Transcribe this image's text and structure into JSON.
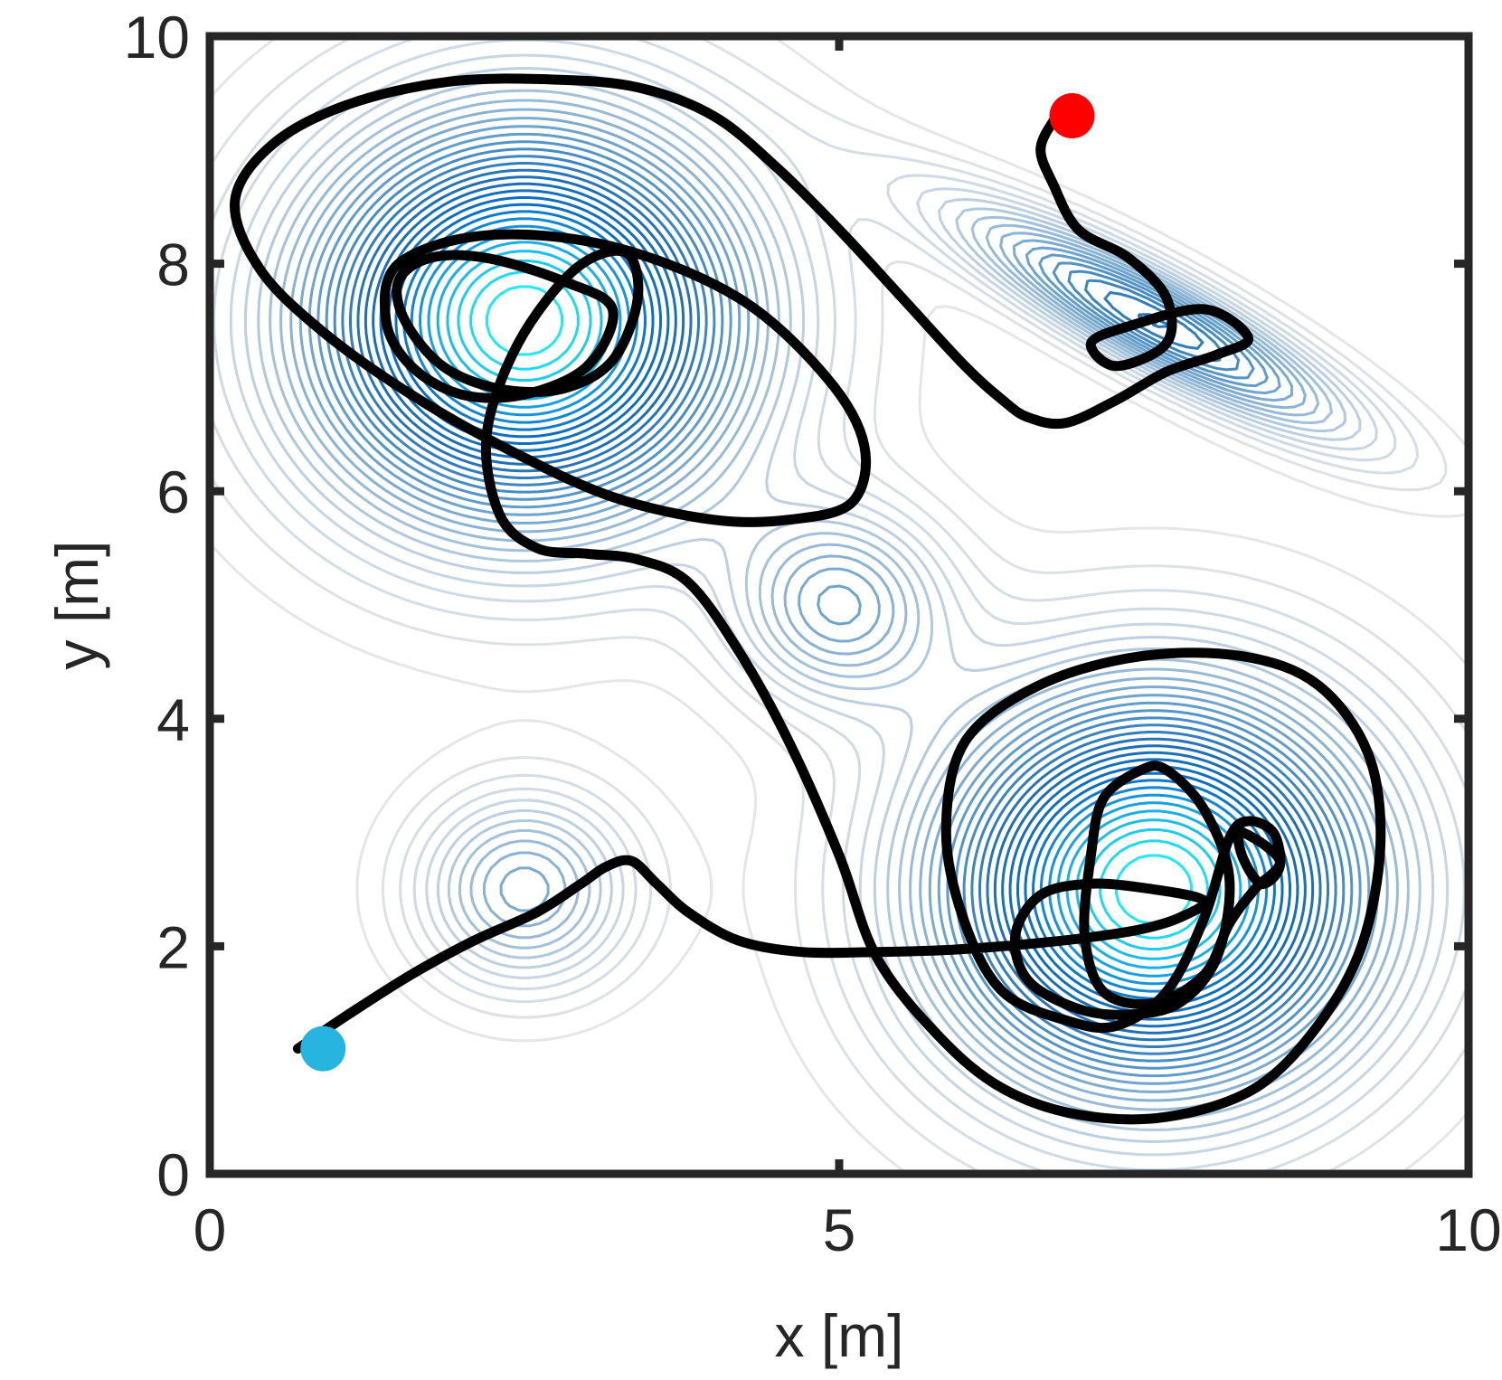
{
  "chart_data": {
    "type": "contour",
    "xlabel": "x [m]",
    "ylabel": "y [m]",
    "xlim": [
      0,
      10
    ],
    "ylim": [
      0,
      10
    ],
    "xticks": [
      0,
      5,
      10
    ],
    "yticks": [
      0,
      2,
      4,
      6,
      8,
      10
    ],
    "xtick_labels": [
      "0",
      "5",
      "10"
    ],
    "ytick_labels": [
      "0",
      "2",
      "4",
      "6",
      "8",
      "10"
    ],
    "grid": false,
    "colormap": [
      "#e6e6e6",
      "#c3d4e3",
      "#8bb4d4",
      "#4f93c6",
      "#1f6fb4",
      "#0a6fc2",
      "#1aa9e6",
      "#22e8f5"
    ],
    "density_components": [
      {
        "mean": [
          2.5,
          7.5
        ],
        "sigma": [
          1.2,
          1.2
        ],
        "rho": 0.0,
        "weight": 1.0
      },
      {
        "mean": [
          7.5,
          2.5
        ],
        "sigma": [
          1.2,
          1.2
        ],
        "rho": 0.0,
        "weight": 1.0
      },
      {
        "mean": [
          5.0,
          5.0
        ],
        "sigma": [
          0.6,
          0.6
        ],
        "rho": 0.0,
        "weight": 0.35
      },
      {
        "mean": [
          2.5,
          2.5
        ],
        "sigma": [
          0.6,
          0.6
        ],
        "rho": 0.0,
        "weight": 0.35
      },
      {
        "mean": [
          7.5,
          7.5
        ],
        "sigma": [
          1.1,
          0.7
        ],
        "rho": -0.88,
        "weight": 0.55
      }
    ],
    "trajectory": {
      "color": "#000000",
      "x": [
        0.7,
        1.1,
        1.6,
        2.1,
        2.6,
        2.95,
        3.15,
        3.35,
        3.55,
        3.8,
        4.2,
        4.7,
        5.3,
        5.9,
        6.5,
        7.0,
        7.4,
        7.7,
        7.9,
        7.5,
        7.0,
        6.6,
        6.4,
        6.5,
        6.9,
        7.3,
        7.7,
        8.0,
        8.1,
        7.9,
        7.6,
        7.4,
        7.1,
        7.0,
        6.95,
        7.1,
        7.5,
        7.9,
        8.1,
        8.3,
        8.5,
        8.2,
        8.2,
        8.35,
        8.5,
        8.45,
        8.25,
        8.1,
        7.9,
        7.6,
        7.2,
        6.8,
        6.3,
        6.0,
        5.85,
        6.0,
        6.6,
        7.4,
        8.2,
        8.8,
        9.2,
        9.3,
        9.15,
        8.8,
        8.3,
        7.6,
        6.9,
        6.3,
        5.8,
        5.3,
        5.0,
        4.6,
        4.2,
        3.8,
        3.4,
        3.0,
        2.6,
        2.3,
        2.2,
        2.45,
        2.9,
        3.3,
        3.4,
        3.2,
        2.8,
        2.3,
        1.85,
        1.55,
        1.5,
        1.75,
        2.2,
        2.8,
        3.2,
        3.0,
        2.5,
        2.0,
        1.6,
        1.4,
        1.5,
        2.2,
        3.2,
        4.2,
        4.9,
        5.2,
        5.1,
        4.6,
        4.0,
        3.2,
        2.4,
        1.6,
        0.9,
        0.4,
        0.2,
        0.5,
        1.1,
        1.9,
        2.7,
        3.4,
        4.0,
        4.5,
        5.0,
        5.5,
        6.0,
        6.3,
        6.5,
        6.8,
        7.2,
        7.6,
        8.0,
        8.25,
        7.9,
        7.3,
        7.0,
        7.2,
        7.6,
        7.6,
        7.3,
        6.9,
        6.7,
        6.6,
        6.7,
        6.8
      ],
      "y": [
        1.1,
        1.4,
        1.75,
        2.05,
        2.3,
        2.55,
        2.7,
        2.75,
        2.55,
        2.3,
        2.05,
        1.95,
        1.95,
        1.97,
        2.02,
        2.08,
        2.15,
        2.25,
        2.4,
        2.5,
        2.55,
        2.45,
        2.1,
        1.7,
        1.45,
        1.4,
        1.5,
        1.9,
        2.6,
        3.2,
        3.55,
        3.55,
        3.3,
        2.8,
        2.1,
        1.6,
        1.5,
        1.75,
        2.2,
        2.5,
        2.75,
        3.0,
        2.8,
        2.55,
        2.7,
        3.0,
        3.1,
        2.95,
        2.25,
        1.6,
        1.3,
        1.35,
        1.6,
        2.2,
        3.0,
        3.8,
        4.3,
        4.55,
        4.55,
        4.3,
        3.7,
        2.9,
        2.0,
        1.3,
        0.75,
        0.5,
        0.52,
        0.75,
        1.2,
        1.9,
        2.8,
        3.8,
        4.6,
        5.2,
        5.4,
        5.45,
        5.5,
        5.8,
        6.5,
        7.3,
        7.95,
        8.1,
        7.7,
        7.15,
        6.9,
        6.9,
        7.1,
        7.5,
        7.85,
        8.05,
        8.05,
        7.85,
        7.6,
        7.1,
        6.85,
        6.85,
        7.1,
        7.5,
        8.0,
        8.25,
        8.15,
        7.7,
        7.0,
        6.4,
        5.9,
        5.75,
        5.75,
        5.95,
        6.35,
        6.85,
        7.4,
        7.95,
        8.55,
        9.05,
        9.4,
        9.6,
        9.62,
        9.55,
        9.3,
        8.85,
        8.3,
        7.7,
        7.1,
        6.8,
        6.65,
        6.6,
        6.8,
        7.05,
        7.2,
        7.35,
        7.6,
        7.45,
        7.3,
        7.1,
        7.3,
        7.7,
        8.05,
        8.3,
        8.7,
        9.0,
        9.25,
        9.35
      ]
    },
    "start_marker": {
      "x": 0.9,
      "y": 1.1,
      "color": "#27b5e0"
    },
    "end_marker": {
      "x": 6.85,
      "y": 9.3,
      "color": "#ff0000"
    }
  }
}
